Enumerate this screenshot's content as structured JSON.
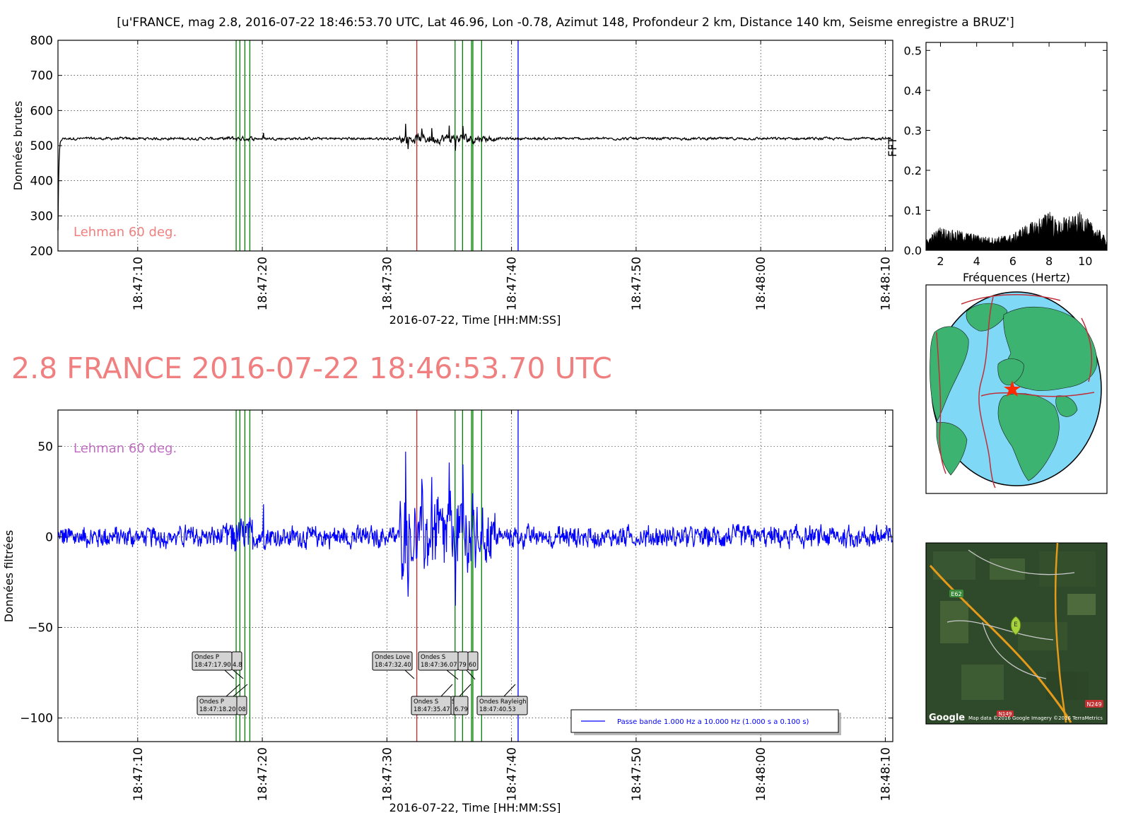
{
  "figure_title": "[u'FRANCE, mag 2.8, 2016-07-22 18:46:53.70 UTC, Lat 46.96, Lon -0.78, Azimut 148, Profondeur 2 km, Distance   140 km, Seisme enregistre a BRUZ']",
  "headline": "2.8 FRANCE 2016-07-22 18:46:53.70 UTC",
  "colors": {
    "raw_trace": "#000000",
    "filtered_trace": "#0000ff",
    "phase_line": "#008000",
    "love_line": "#d62728",
    "rayleigh_line": "#0000ff",
    "headline": "#f08080",
    "lehman_top": "#f08080",
    "lehman_bottom": "#c06fc0",
    "ocean": "#7fd8f5",
    "land": "#3cb371",
    "plate_boundary": "#c0303a",
    "epicenter": "#ff2a00"
  },
  "chart_data": [
    {
      "type": "line",
      "name": "raw",
      "xlabel": "2016-07-22, Time [HH:MM:SS]",
      "ylabel": "Données brutes",
      "xlim": [
        "18:47:03.6",
        "18:48:10.6"
      ],
      "ylim": [
        200,
        800
      ],
      "yticks": [
        200,
        300,
        400,
        500,
        600,
        700,
        800
      ],
      "xticks": [
        "18:47:10",
        "18:47:20",
        "18:47:30",
        "18:47:40",
        "18:47:50",
        "18:48:00",
        "18:48:10"
      ],
      "baseline": 520,
      "grid": true,
      "annotation": "Lehman 60 deg."
    },
    {
      "type": "line",
      "name": "filtered",
      "xlabel": "2016-07-22, Time [HH:MM:SS]",
      "ylabel": "Données filtrées",
      "xlim": [
        "18:47:03.6",
        "18:48:10.6"
      ],
      "ylim": [
        -113,
        70
      ],
      "yticks": [
        -100,
        -50,
        0,
        50
      ],
      "xticks": [
        "18:47:10",
        "18:47:20",
        "18:47:30",
        "18:47:40",
        "18:47:50",
        "18:48:00",
        "18:48:10"
      ],
      "grid": true,
      "legend": "Passe bande 1.000 Hz a 10.000 Hz (1.000 s a 0.100 s)",
      "legend_position": "lower-right",
      "annotation": "Lehman 60 deg.",
      "peaks": [
        {
          "t": "18:47:31.5",
          "y": 47
        },
        {
          "t": "18:47:31.7",
          "y": -33
        },
        {
          "t": "18:47:35.0",
          "y": 41
        },
        {
          "t": "18:47:35.5",
          "y": -38
        },
        {
          "t": "18:47:36.1",
          "y": 40
        },
        {
          "t": "18:47:20.1",
          "y": 18
        },
        {
          "t": "18:47:32.8",
          "y": 32
        },
        {
          "t": "18:47:33.6",
          "y": 33
        }
      ],
      "phase_labels": [
        {
          "label": "Ondes P",
          "time": "18:47:17.90"
        },
        {
          "label": "Ondes P",
          "time": "18:47:18.20"
        },
        {
          "label": "Ondes Love",
          "time": "18:47:32.40"
        },
        {
          "label": "Ondes S",
          "time": "18:47:36.07"
        },
        {
          "label": "Ondes S",
          "time": "18:47:35.47"
        },
        {
          "label": "Ondes Rayleigh",
          "time": "18:47:40.53"
        }
      ],
      "partial_box_texts": [
        "4.8",
        "08",
        "S",
        "6.79",
        "79",
        "60"
      ]
    },
    {
      "type": "area",
      "name": "fft",
      "xlabel": "Fréquences (Hertz)",
      "ylabel": "FFT",
      "xlim": [
        1.2,
        11.2
      ],
      "ylim": [
        0,
        0.52
      ],
      "xticks": [
        "2",
        "4",
        "6",
        "8",
        "10"
      ],
      "yticks": [
        "0.0",
        "0.1",
        "0.2",
        "0.3",
        "0.4",
        "0.5"
      ],
      "envelope_x": [
        1.2,
        1.6,
        2.0,
        2.5,
        3.0,
        3.5,
        4.0,
        4.5,
        5.0,
        5.5,
        6.0,
        6.5,
        7.0,
        7.5,
        7.8,
        8.0,
        8.3,
        8.6,
        9.0,
        9.4,
        9.8,
        10.2,
        10.6,
        11.0,
        11.2
      ],
      "envelope_y": [
        0.025,
        0.045,
        0.06,
        0.052,
        0.05,
        0.045,
        0.04,
        0.035,
        0.032,
        0.038,
        0.04,
        0.06,
        0.07,
        0.085,
        0.092,
        0.12,
        0.08,
        0.075,
        0.09,
        0.085,
        0.1,
        0.075,
        0.06,
        0.04,
        0.025
      ]
    }
  ],
  "phase_lines": {
    "p_and_s_times": [
      "18:47:17.90",
      "18:47:18.20",
      "18:47:18.6",
      "18:47:19.0",
      "18:47:35.47",
      "18:47:36.07",
      "18:47:36.79",
      "18:47:36.9",
      "18:47:37.60"
    ],
    "love_time": "18:47:32.40",
    "rayleigh_time": "18:47:40.53"
  },
  "map_texts": {
    "google": "Google",
    "copyright": "Map data ©2016 Google  Imagery ©2016 TerraMetrics",
    "road_e62": "E62",
    "road_n249": "N249",
    "road_n149": "N149",
    "marker_letter": "E"
  }
}
